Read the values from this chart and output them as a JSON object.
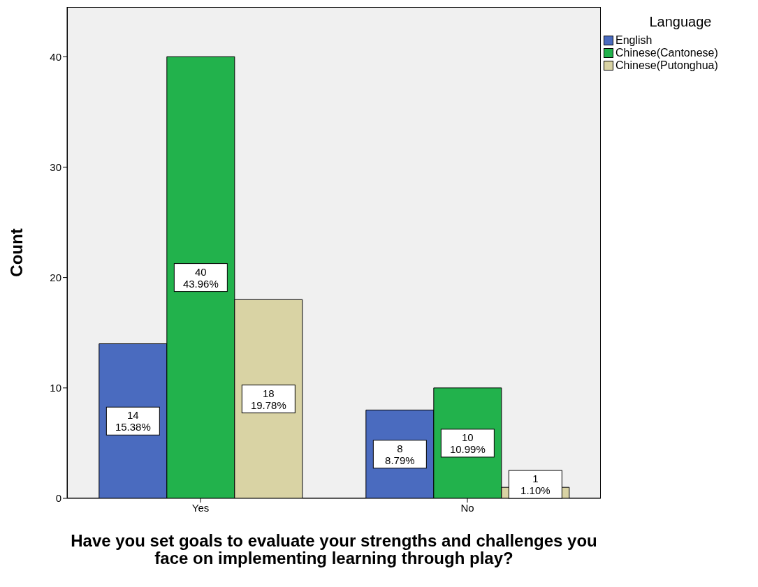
{
  "chart_data": {
    "type": "bar",
    "ylabel": "Count",
    "xlabel": "Have you set goals to evaluate your strengths and challenges you face on implementing learning through play?",
    "legend_title": "Language",
    "legend": "top right",
    "categories": [
      "Yes",
      "No"
    ],
    "series": [
      {
        "name": "English",
        "color": "#4a6bbf",
        "values": [
          14,
          8
        ],
        "value_labels": [
          "14\n15.38%",
          "8\n8.79%"
        ]
      },
      {
        "name": "Chinese(Cantonese)",
        "color": "#22b24c",
        "values": [
          40,
          10
        ],
        "value_labels": [
          "40\n43.96%",
          "10\n10.99%"
        ]
      },
      {
        "name": "Chinese(Putonghua)",
        "color": "#d9d3a4",
        "values": [
          18,
          1
        ],
        "value_labels": [
          "18\n19.78%",
          "1\n1.10%"
        ]
      }
    ],
    "ylim": [
      0,
      44.5
    ],
    "yticks": [
      0,
      10,
      20,
      30,
      40
    ]
  }
}
